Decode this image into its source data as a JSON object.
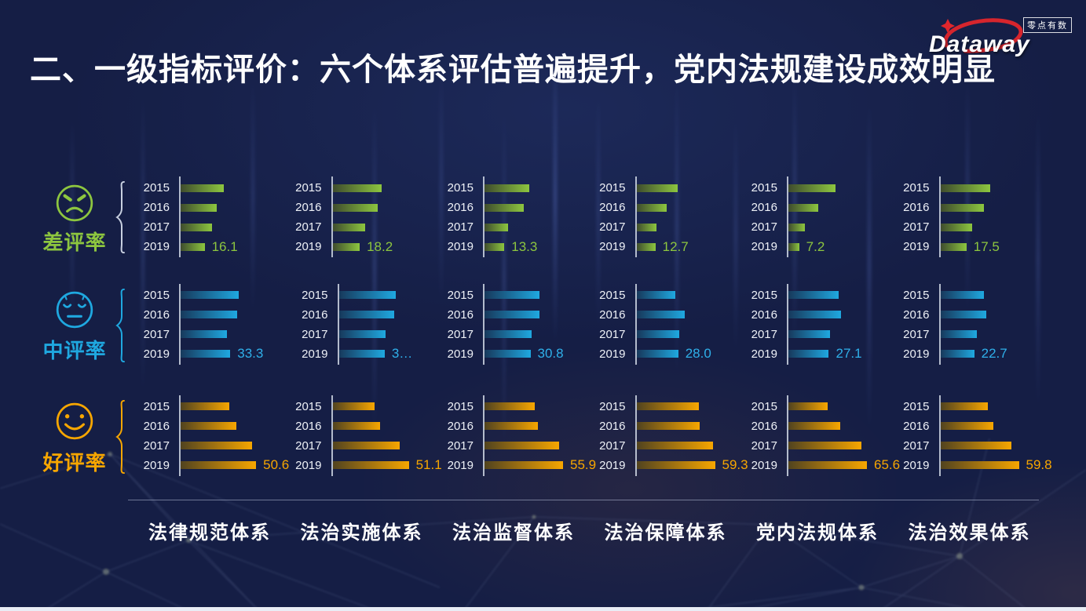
{
  "slide": {
    "title": "二、一级指标评价：六个体系评估普遍提升，党内法规建设成效明显"
  },
  "logo": {
    "brand": "Dataway",
    "badge": "零点有数",
    "accent_red": "#e0262c"
  },
  "row_groups": [
    {
      "id": "bad",
      "label": "差评率",
      "face": "angry-face",
      "color": "#8dc63f",
      "color_dark": "#3f4c2e",
      "bracket_color": "#c8d0e0",
      "value_color": "#8dc63f"
    },
    {
      "id": "mid",
      "label": "中评率",
      "face": "neutral-face",
      "color": "#1fa8e0",
      "color_dark": "#17395c",
      "bracket_color": "#1fa8e0",
      "value_color": "#2fb0ea"
    },
    {
      "id": "good",
      "label": "好评率",
      "face": "smile-face",
      "color": "#f7a600",
      "color_dark": "#51431f",
      "bracket_color": "#f7a600",
      "value_color": "#f7a600"
    }
  ],
  "chart_data": {
    "type": "bar",
    "orientation": "horizontal",
    "unit": "%",
    "years": [
      "2015",
      "2016",
      "2017",
      "2019"
    ],
    "categories": [
      "法律规范体系",
      "法治实施体系",
      "法治监督体系",
      "法治保障体系",
      "党内法规体系",
      "法治效果体系"
    ],
    "labels_shown_for": "2019",
    "rows": [
      {
        "name": "差评率",
        "series": [
          {
            "category": "法律规范体系",
            "values": [
              29.1,
              24.4,
              20.8,
              16.1
            ],
            "shown_label": "16.1"
          },
          {
            "category": "法治实施体系",
            "values": [
              32.8,
              30.2,
              21.8,
              18.2
            ],
            "shown_label": "18.2"
          },
          {
            "category": "法治监督体系",
            "values": [
              29.9,
              26.5,
              15.8,
              13.3
            ],
            "shown_label": "13.3"
          },
          {
            "category": "法治保障体系",
            "values": [
              27.6,
              20.4,
              13.3,
              12.7
            ],
            "shown_label": "12.7"
          },
          {
            "category": "党内法规体系",
            "values": [
              31.8,
              20.1,
              10.8,
              7.2
            ],
            "shown_label": "7.2"
          },
          {
            "category": "法治效果体系",
            "values": [
              33.6,
              29.0,
              21.4,
              17.5
            ],
            "shown_label": "17.5"
          }
        ]
      },
      {
        "name": "中评率",
        "series": [
          {
            "category": "法律规范体系",
            "values": [
              39.0,
              37.8,
              31.2,
              33.3
            ],
            "shown_label": "33.3"
          },
          {
            "category": "法治实施体系",
            "values": [
              38.0,
              37.2,
              31.1,
              30.7
            ],
            "shown_label": "3…"
          },
          {
            "category": "法治监督体系",
            "values": [
              37.0,
              37.0,
              31.7,
              30.8
            ],
            "shown_label": "30.8"
          },
          {
            "category": "法治保障体系",
            "values": [
              25.9,
              32.3,
              28.5,
              28.0
            ],
            "shown_label": "28.0"
          },
          {
            "category": "党内法规体系",
            "values": [
              33.5,
              35.5,
              27.9,
              27.1
            ],
            "shown_label": "27.1"
          },
          {
            "category": "法治效果体系",
            "values": [
              29.3,
              30.6,
              24.7,
              22.7
            ],
            "shown_label": "22.7"
          }
        ]
      },
      {
        "name": "好评率",
        "series": [
          {
            "category": "法律规范体系",
            "values": [
              32.4,
              37.5,
              48.0,
              50.6
            ],
            "shown_label": "50.6"
          },
          {
            "category": "法治实施体系",
            "values": [
              28.1,
              31.9,
              45.0,
              51.1
            ],
            "shown_label": "51.1"
          },
          {
            "category": "法治监督体系",
            "values": [
              35.7,
              38.1,
              53.1,
              55.9
            ],
            "shown_label": "55.9"
          },
          {
            "category": "法治保障体系",
            "values": [
              46.9,
              48.0,
              57.7,
              59.3
            ],
            "shown_label": "59.3"
          },
          {
            "category": "党内法规体系",
            "values": [
              32.9,
              43.5,
              61.2,
              65.6
            ],
            "shown_label": "65.6"
          },
          {
            "category": "法治效果体系",
            "values": [
              35.9,
              40.5,
              53.9,
              59.8
            ],
            "shown_label": "59.8"
          }
        ]
      }
    ]
  }
}
